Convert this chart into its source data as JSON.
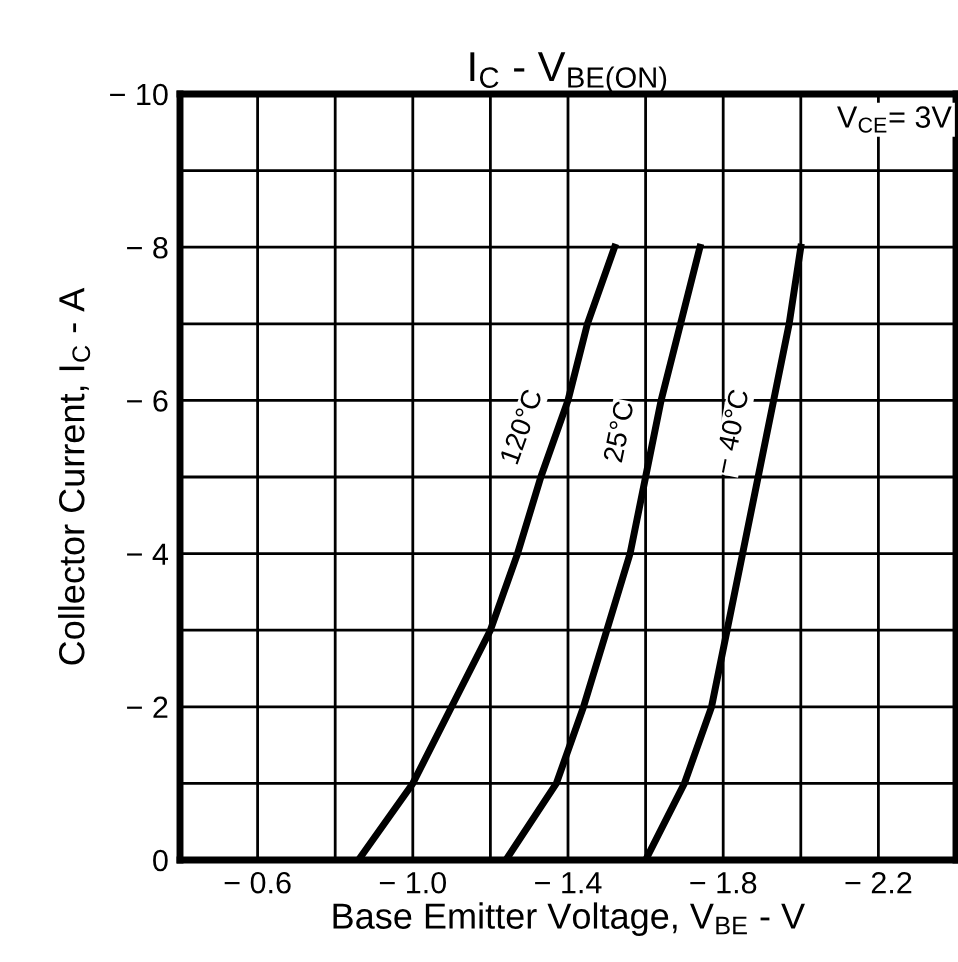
{
  "chart_data": {
    "type": "line",
    "title": "I$_{C}$ - V$_{BE(ON)}$",
    "xlabel": "Base Emitter Voltage, V$_{BE}$ - V",
    "ylabel": "Collector Current, I$_{C}$ - A",
    "annotations": [
      "V$_{CE}$= 3V"
    ],
    "xlim": [
      -0.4,
      -2.4
    ],
    "ylim": [
      0,
      -10
    ],
    "xticks": [
      {
        "value": -0.6,
        "label": "− 0.6"
      },
      {
        "value": -1.0,
        "label": "− 1.0"
      },
      {
        "value": -1.4,
        "label": "− 1.4"
      },
      {
        "value": -1.8,
        "label": "− 1.8"
      },
      {
        "value": -2.2,
        "label": "− 2.2"
      }
    ],
    "yticks": [
      0,
      {
        "value": -2,
        "label": "− 2"
      },
      {
        "value": -4,
        "label": "− 4"
      },
      {
        "value": -6,
        "label": "− 6"
      },
      {
        "value": -8,
        "label": "− 8"
      },
      {
        "value": -10,
        "label": "− 10"
      }
    ],
    "grid": true,
    "legend": false,
    "marker": "none",
    "line_style": "solid",
    "series": [
      {
        "name": "120°C",
        "color": "#000000",
        "x": [
          -0.86,
          -1.0,
          -1.1,
          -1.2,
          -1.27,
          -1.33,
          -1.4,
          -1.45,
          -1.52
        ],
        "values": [
          0,
          -1,
          -2,
          -3,
          -4,
          -5,
          -6,
          -7,
          -8
        ]
      },
      {
        "name": "25°C",
        "color": "#000000",
        "x": [
          -1.24,
          -1.37,
          -1.44,
          -1.5,
          -1.56,
          -1.6,
          -1.64,
          -1.69,
          -1.74
        ],
        "values": [
          0,
          -1,
          -2,
          -3,
          -4,
          -5,
          -6,
          -7,
          -8
        ]
      },
      {
        "name": "− 40°C",
        "color": "#000000",
        "x": [
          -1.6,
          -1.7,
          -1.77,
          -1.81,
          -1.85,
          -1.89,
          -1.93,
          -1.97,
          -2.0
        ],
        "values": [
          0,
          -1,
          -2,
          -3,
          -4,
          -5,
          -6,
          -7,
          -8
        ]
      }
    ]
  }
}
